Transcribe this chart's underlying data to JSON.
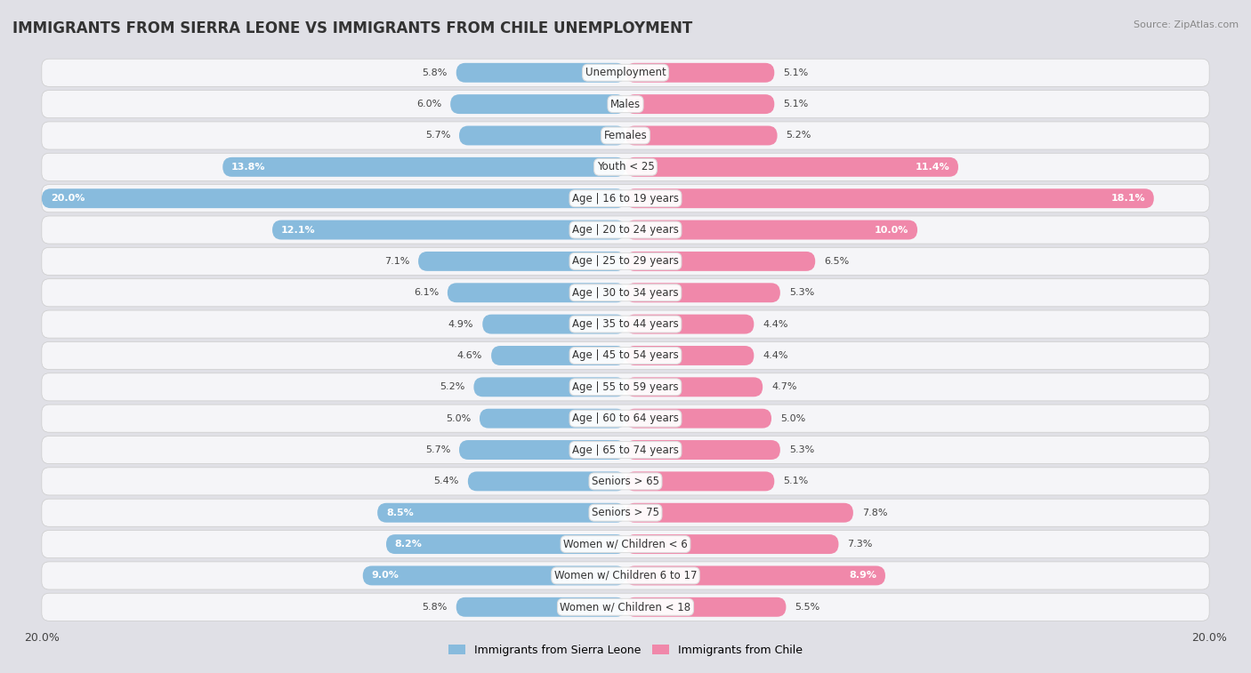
{
  "title": "IMMIGRANTS FROM SIERRA LEONE VS IMMIGRANTS FROM CHILE UNEMPLOYMENT",
  "source": "Source: ZipAtlas.com",
  "categories": [
    "Unemployment",
    "Males",
    "Females",
    "Youth < 25",
    "Age | 16 to 19 years",
    "Age | 20 to 24 years",
    "Age | 25 to 29 years",
    "Age | 30 to 34 years",
    "Age | 35 to 44 years",
    "Age | 45 to 54 years",
    "Age | 55 to 59 years",
    "Age | 60 to 64 years",
    "Age | 65 to 74 years",
    "Seniors > 65",
    "Seniors > 75",
    "Women w/ Children < 6",
    "Women w/ Children 6 to 17",
    "Women w/ Children < 18"
  ],
  "sierra_leone": [
    5.8,
    6.0,
    5.7,
    13.8,
    20.0,
    12.1,
    7.1,
    6.1,
    4.9,
    4.6,
    5.2,
    5.0,
    5.7,
    5.4,
    8.5,
    8.2,
    9.0,
    5.8
  ],
  "chile": [
    5.1,
    5.1,
    5.2,
    11.4,
    18.1,
    10.0,
    6.5,
    5.3,
    4.4,
    4.4,
    4.7,
    5.0,
    5.3,
    5.1,
    7.8,
    7.3,
    8.9,
    5.5
  ],
  "sierra_leone_color": "#88bbdd",
  "chile_color": "#f088aa",
  "row_bg_color": "#e8e8ec",
  "row_fill_color": "#f5f5f8",
  "bg_color": "#e0e0e6",
  "max_value": 20.0,
  "legend_sierra_leone": "Immigrants from Sierra Leone",
  "legend_chile": "Immigrants from Chile",
  "title_fontsize": 12,
  "label_fontsize": 8.5,
  "value_fontsize": 8.0,
  "inside_value_threshold": 8.0
}
